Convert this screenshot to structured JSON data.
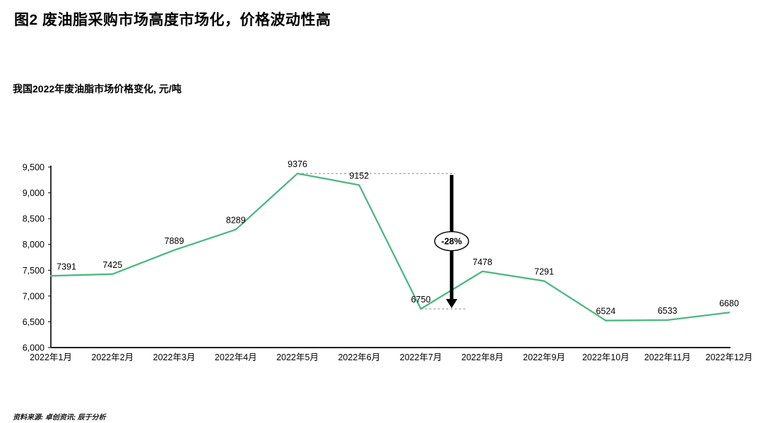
{
  "page": {
    "title": "图2  废油脂采购市场高度市场化，价格波动性高",
    "subtitle": "我国2022年废油脂市场价格变化, 元/吨",
    "source": "资料来源: 卓创资讯; 辰于分析"
  },
  "chart_data": {
    "type": "line",
    "title": "我国2022年废油脂市场价格变化, 元/吨",
    "xlabel": "",
    "ylabel": "元/吨",
    "categories": [
      "2022年1月",
      "2022年2月",
      "2022年3月",
      "2022年4月",
      "2022年5月",
      "2022年6月",
      "2022年7月",
      "2022年8月",
      "2022年9月",
      "2022年10月",
      "2022年11月",
      "2022年12月"
    ],
    "values": [
      7391,
      7425,
      7889,
      8289,
      9376,
      9152,
      6750,
      7478,
      7291,
      6524,
      6533,
      6680
    ],
    "ylim": [
      6000,
      9500
    ],
    "ytick_step": 500,
    "grid": "off",
    "legend": "none",
    "line_color": "#4bb87e",
    "axis_color": "#000000",
    "annotation": {
      "label": "-28%",
      "from_value": 9376,
      "from_index": 4,
      "to_value": 6750,
      "to_index": 6,
      "arrow_x_index": 6.5
    }
  }
}
